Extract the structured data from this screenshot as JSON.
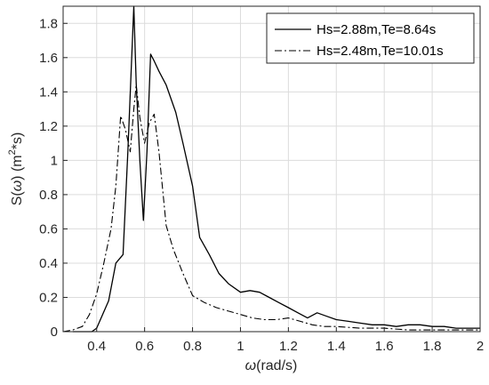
{
  "chart_data": {
    "type": "line",
    "xlabel_symbol": "ω",
    "xlabel_units": "(rad/s)",
    "ylabel_prefix": "S(",
    "ylabel_symbol": "ω",
    "ylabel_mid": ") (m",
    "ylabel_sup": "2",
    "ylabel_suffix": "*s)",
    "xlim": [
      0.26,
      2.0
    ],
    "ylim": [
      0,
      1.9
    ],
    "x_ticks": [
      "0.4",
      "0.6",
      "0.8",
      "1",
      "1.2",
      "1.4",
      "1.6",
      "1.8",
      "2"
    ],
    "y_ticks": [
      "0",
      "0.2",
      "0.4",
      "0.6",
      "0.8",
      "1",
      "1.2",
      "1.4",
      "1.6",
      "1.8"
    ],
    "grid": true,
    "legend_position": "top-right",
    "series": [
      {
        "name": "Hs=2.88m,Te=8.64s",
        "line_style": "solid",
        "color": "#000000",
        "x": [
          0.3,
          0.34,
          0.38,
          0.4,
          0.45,
          0.48,
          0.51,
          0.53,
          0.555,
          0.565,
          0.58,
          0.595,
          0.61,
          0.625,
          0.64,
          0.66,
          0.69,
          0.73,
          0.76,
          0.8,
          0.83,
          0.87,
          0.91,
          0.95,
          1.0,
          1.04,
          1.08,
          1.12,
          1.16,
          1.2,
          1.24,
          1.28,
          1.32,
          1.36,
          1.4,
          1.45,
          1.5,
          1.55,
          1.6,
          1.65,
          1.7,
          1.75,
          1.8,
          1.85,
          1.9,
          1.95,
          2.0
        ],
        "y": [
          0.0,
          0.0,
          0.0,
          0.02,
          0.18,
          0.4,
          0.45,
          1.05,
          1.9,
          1.45,
          1.0,
          0.65,
          1.05,
          1.62,
          1.58,
          1.52,
          1.44,
          1.28,
          1.1,
          0.85,
          0.55,
          0.45,
          0.34,
          0.28,
          0.23,
          0.24,
          0.23,
          0.2,
          0.17,
          0.14,
          0.11,
          0.08,
          0.11,
          0.09,
          0.07,
          0.06,
          0.05,
          0.04,
          0.04,
          0.03,
          0.04,
          0.04,
          0.03,
          0.03,
          0.02,
          0.02,
          0.02
        ]
      },
      {
        "name": "Hs=2.48m,Te=10.01s",
        "line_style": "dashdot",
        "color": "#000000",
        "x": [
          0.26,
          0.3,
          0.34,
          0.37,
          0.4,
          0.43,
          0.46,
          0.48,
          0.5,
          0.52,
          0.54,
          0.555,
          0.565,
          0.58,
          0.6,
          0.62,
          0.64,
          0.66,
          0.69,
          0.72,
          0.76,
          0.8,
          0.85,
          0.9,
          0.95,
          1.0,
          1.05,
          1.1,
          1.15,
          1.2,
          1.25,
          1.3,
          1.35,
          1.4,
          1.5,
          1.6,
          1.7,
          1.8,
          1.9,
          2.0
        ],
        "y": [
          0.0,
          0.01,
          0.03,
          0.1,
          0.22,
          0.4,
          0.6,
          0.85,
          1.26,
          1.18,
          1.05,
          1.3,
          1.44,
          1.25,
          1.1,
          1.22,
          1.27,
          1.05,
          0.62,
          0.48,
          0.34,
          0.21,
          0.17,
          0.14,
          0.12,
          0.1,
          0.08,
          0.07,
          0.07,
          0.08,
          0.06,
          0.04,
          0.03,
          0.03,
          0.02,
          0.02,
          0.01,
          0.01,
          0.01,
          0.01
        ]
      }
    ]
  }
}
